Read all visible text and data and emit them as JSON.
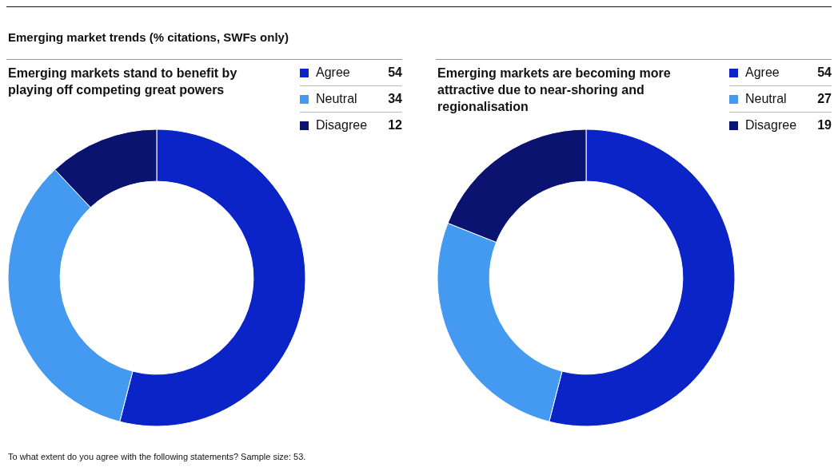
{
  "chart_data": [
    {
      "type": "donut",
      "title": "Emerging markets stand to benefit by playing off competing great powers",
      "categories": [
        "Agree",
        "Neutral",
        "Disagree"
      ],
      "values": [
        54,
        34,
        12
      ],
      "colors": [
        "#0a24c8",
        "#4499f0",
        "#0a1470"
      ],
      "data_labels": true,
      "legend": "top right",
      "annotations": [
        "Emerging market trends (% citations, SWFs only)",
        "To what extent do you agree with the following statements? Sample size: 53."
      ]
    },
    {
      "type": "donut",
      "title": "Emerging markets are becoming more attractive due to near-shoring and regionalisation",
      "categories": [
        "Agree",
        "Neutral",
        "Disagree"
      ],
      "values": [
        54,
        27,
        19
      ],
      "colors": [
        "#0a24c8",
        "#4499f0",
        "#0a1470"
      ],
      "data_labels": true,
      "legend": "top right"
    }
  ]
}
